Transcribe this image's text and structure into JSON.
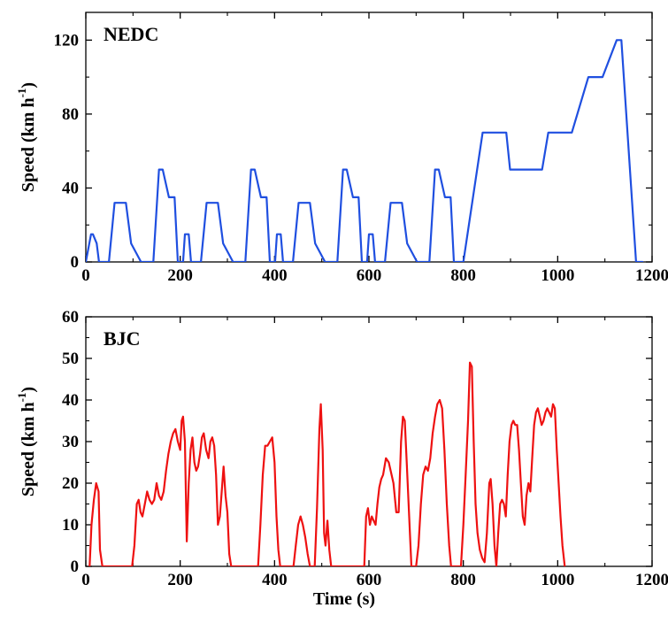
{
  "chart_data": [
    {
      "type": "line",
      "title": "NEDC",
      "xlabel": "",
      "ylabel": "Speed (km h",
      "ylabel_sup": "-1",
      "ylabel_close": ")",
      "xlim": [
        0,
        1200
      ],
      "ylim": [
        0,
        135
      ],
      "xticks": [
        0,
        200,
        400,
        600,
        800,
        1000,
        1200
      ],
      "yticks": [
        0,
        40,
        80,
        120
      ],
      "grid": false,
      "color": "#1f4fe0",
      "series": [
        {
          "x": [
            0,
            11,
            15,
            23,
            28,
            49,
            61,
            85,
            96,
            117,
            143,
            155,
            163,
            176,
            178,
            188,
            195,
            206,
            210,
            218,
            223,
            244,
            256,
            280,
            291,
            312,
            338,
            350,
            358,
            371,
            373,
            383,
            390,
            401,
            405,
            413,
            418,
            439,
            451,
            475,
            486,
            507,
            533,
            545,
            553,
            566,
            568,
            578,
            585,
            596,
            600,
            608,
            613,
            634,
            646,
            670,
            681,
            702,
            728,
            740,
            748,
            761,
            763,
            773,
            780,
            800,
            841,
            891,
            899,
            967,
            980,
            1030,
            1065,
            1095,
            1125,
            1135,
            1166,
            1180
          ],
          "y": [
            0,
            15,
            15,
            10,
            0,
            0,
            32,
            32,
            10,
            0,
            0,
            50,
            50,
            35,
            35,
            35,
            0,
            0,
            15,
            15,
            0,
            0,
            32,
            32,
            10,
            0,
            0,
            50,
            50,
            35,
            35,
            35,
            0,
            0,
            15,
            15,
            0,
            0,
            32,
            32,
            10,
            0,
            0,
            50,
            50,
            35,
            35,
            35,
            0,
            0,
            15,
            15,
            0,
            0,
            32,
            32,
            10,
            0,
            0,
            50,
            50,
            35,
            35,
            35,
            0,
            0,
            70,
            70,
            50,
            50,
            70,
            70,
            100,
            100,
            120,
            120,
            0,
            0
          ]
        }
      ]
    },
    {
      "type": "line",
      "title": "BJC",
      "xlabel": "Time (s)",
      "ylabel": "Speed (km h",
      "ylabel_sup": "-1",
      "ylabel_close": ")",
      "xlim": [
        0,
        1200
      ],
      "ylim": [
        0,
        60
      ],
      "xticks": [
        0,
        200,
        400,
        600,
        800,
        1000,
        1200
      ],
      "yticks": [
        0,
        10,
        20,
        30,
        40,
        50,
        60
      ],
      "grid": false,
      "color": "#ee1111",
      "series": [
        {
          "x": [
            8,
            12,
            17,
            22,
            27,
            30,
            35,
            98,
            103,
            108,
            112,
            116,
            120,
            125,
            130,
            135,
            140,
            145,
            150,
            155,
            160,
            165,
            170,
            175,
            180,
            185,
            190,
            195,
            200,
            203,
            206,
            210,
            214,
            218,
            222,
            226,
            230,
            234,
            238,
            242,
            246,
            250,
            255,
            260,
            264,
            268,
            272,
            276,
            280,
            284,
            288,
            292,
            296,
            300,
            304,
            308,
            312,
            316,
            320,
            365,
            370,
            375,
            380,
            385,
            390,
            395,
            400,
            404,
            408,
            412,
            418,
            430,
            440,
            445,
            450,
            455,
            460,
            465,
            470,
            475,
            478,
            485,
            490,
            495,
            498,
            502,
            505,
            508,
            512,
            516,
            520,
            524,
            528,
            532,
            535,
            590,
            594,
            598,
            602,
            606,
            610,
            614,
            618,
            622,
            626,
            630,
            636,
            642,
            648,
            652,
            658,
            663,
            668,
            672,
            676,
            680,
            690,
            700,
            705,
            710,
            715,
            720,
            725,
            730,
            735,
            740,
            745,
            750,
            755,
            760,
            765,
            770,
            774,
            780,
            795,
            800,
            805,
            810,
            814,
            818,
            822,
            826,
            830,
            835,
            840,
            845,
            850,
            855,
            858,
            862,
            866,
            870,
            874,
            878,
            882,
            886,
            890,
            894,
            898,
            902,
            906,
            910,
            914,
            918,
            922,
            926,
            930,
            934,
            938,
            942,
            946,
            950,
            954,
            958,
            962,
            966,
            970,
            974,
            978,
            982,
            986,
            990,
            994,
            998,
            1002,
            1006,
            1010,
            1015
          ],
          "y": [
            0,
            10,
            16,
            20,
            18,
            4,
            0,
            0,
            5,
            15,
            16,
            13,
            12,
            15,
            18,
            16,
            15,
            16,
            20,
            17,
            16,
            18,
            23,
            27,
            30,
            32,
            33,
            30,
            28,
            35,
            36,
            30,
            6,
            20,
            28,
            31,
            25,
            23,
            24,
            27,
            31,
            32,
            28,
            26,
            30,
            31,
            29,
            22,
            10,
            12,
            18,
            24,
            17,
            13,
            3,
            0,
            0,
            0,
            0,
            0,
            10,
            22,
            29,
            29,
            30,
            31,
            25,
            12,
            4,
            0,
            0,
            0,
            0,
            5,
            10,
            12,
            10,
            7,
            3,
            0,
            0,
            0,
            14,
            33,
            39,
            28,
            8,
            5,
            11,
            4,
            0,
            0,
            0,
            0,
            0,
            0,
            12,
            14,
            10,
            12,
            11,
            10,
            15,
            19,
            21,
            22,
            26,
            25,
            22,
            20,
            13,
            13,
            30,
            36,
            35,
            25,
            0,
            0,
            5,
            15,
            22,
            24,
            23,
            26,
            32,
            36,
            39,
            40,
            38,
            28,
            15,
            5,
            0,
            0,
            0,
            10,
            22,
            35,
            49,
            48,
            30,
            15,
            8,
            4,
            2,
            1,
            8,
            20,
            21,
            15,
            5,
            0,
            8,
            15,
            16,
            15,
            12,
            22,
            30,
            34,
            35,
            34,
            34,
            28,
            20,
            12,
            10,
            17,
            20,
            18,
            26,
            34,
            37,
            38,
            36,
            34,
            35,
            37,
            38,
            37,
            36,
            39,
            38,
            28,
            20,
            12,
            5,
            0
          ]
        }
      ]
    }
  ]
}
